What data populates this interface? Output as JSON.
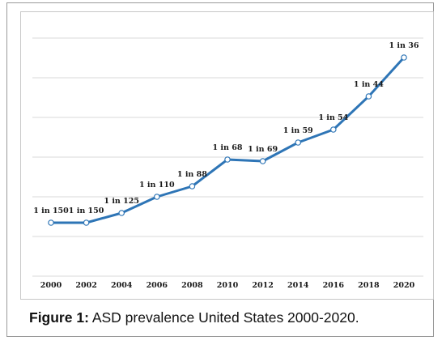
{
  "chart_data": {
    "type": "line",
    "x": [
      "2000",
      "2002",
      "2004",
      "2006",
      "2008",
      "2010",
      "2012",
      "2014",
      "2016",
      "2018",
      "2020"
    ],
    "values": [
      150,
      150,
      125,
      110,
      88,
      68,
      69,
      59,
      54,
      44,
      36
    ],
    "data_labels": [
      "1 in 150",
      "1 in 150",
      "1 in 125",
      "1 in 110",
      "1 in 88",
      "1 in 68",
      "1 in 69",
      "1 in 59",
      "1 in 54",
      "1 in 44",
      "1 in 36"
    ],
    "y_axis_shown": false,
    "gridlines": "horizontal",
    "legend": "none",
    "title": "",
    "xlabel": "",
    "ylabel": "",
    "line_color": "#2e75b6",
    "grid_color": "#d9d9d9"
  },
  "caption": {
    "label": "Figure 1:",
    "text": "ASD prevalence United States 2000-2020."
  }
}
